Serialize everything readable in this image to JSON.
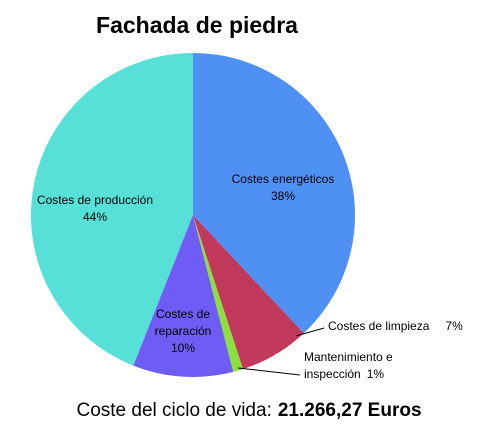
{
  "chart_data": {
    "type": "pie",
    "title": "Fachada de piedra",
    "categories": [
      "Costes energéticos",
      "Costes de limpieza",
      "Mantenimiento e inspección",
      "Costes de reparación",
      "Costes de producción"
    ],
    "values": [
      38,
      7,
      1,
      10,
      44
    ],
    "value_labels": [
      "38%",
      "7%",
      "1%",
      "10%",
      "44%"
    ],
    "colors": [
      "#4f90f5",
      "#c0395a",
      "#8be040",
      "#6f5cf5",
      "#56e0d8"
    ],
    "footer_label": "Coste del ciclo de vida:",
    "footer_value": "21.266,27 Euros"
  }
}
